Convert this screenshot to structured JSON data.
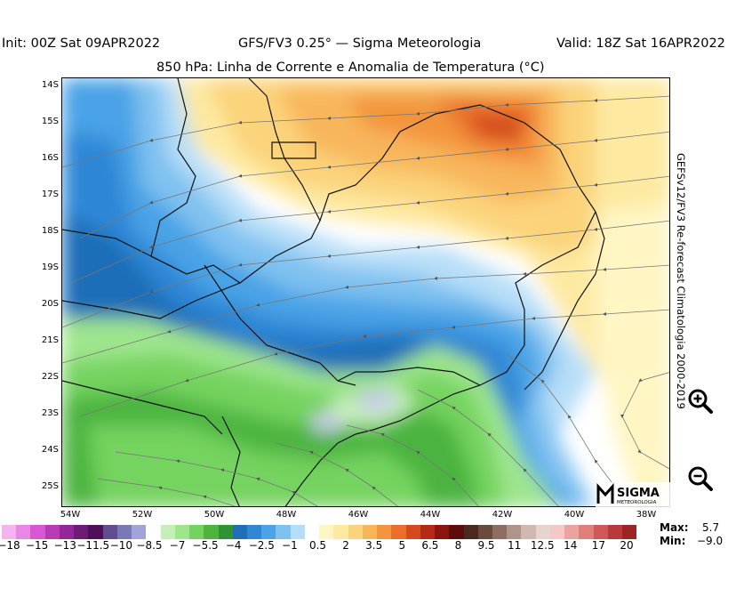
{
  "header": {
    "init": "Init: 00Z Sat 09APR2022",
    "model": "GFS/FV3 0.25° — Sigma Meteorologia",
    "valid": "Valid: 18Z Sat 16APR2022",
    "subtitle": "850 hPa: Linha de Corrente e Anomalia de Temperatura (°C)"
  },
  "side_label": "GEFSv12/FV3 Re-forecast Climatologia 2000-2019",
  "lat_labels": [
    "14S",
    "15S",
    "16S",
    "17S",
    "18S",
    "19S",
    "20S",
    "21S",
    "22S",
    "23S",
    "24S",
    "25S"
  ],
  "lon_labels": [
    "54W",
    "52W",
    "50W",
    "48W",
    "46W",
    "44W",
    "42W",
    "40W",
    "38W"
  ],
  "logo": {
    "name": "SIGMA",
    "sub": "METEOROLOGIA"
  },
  "colorbar": {
    "colors": [
      "#f5b3ef",
      "#ea86e3",
      "#d957d3",
      "#b83ab5",
      "#93279a",
      "#6d1b75",
      "#4e1157",
      "#5e4d8f",
      "#7b78b6",
      "#a3a4d6",
      "#ffffff",
      "#c4f0b8",
      "#9ee58d",
      "#74d35f",
      "#4cb43f",
      "#2f9233",
      "#1f6eb8",
      "#2f87d6",
      "#4aa3e6",
      "#7fc1f0",
      "#b7def8",
      "#ffffff",
      "#fff6c4",
      "#fde9a0",
      "#fbd37a",
      "#f8b65b",
      "#f3943e",
      "#e96f2b",
      "#d44a1f",
      "#b42a16",
      "#8c140f",
      "#5e0c09",
      "#4a2a1e",
      "#6b4a3c",
      "#8d6e62",
      "#b09389",
      "#d1b9b1",
      "#e8d4cf",
      "#f3c9c6",
      "#eba3a0",
      "#e07e7b",
      "#d05858",
      "#b93a3a",
      "#9c2424"
    ],
    "labels": [
      "−18",
      "−15",
      "−13",
      "−11.5",
      "−10",
      "−8.5",
      "−7",
      "−5.5",
      "−4",
      "−2.5",
      "−1",
      "0.5",
      "2",
      "3.5",
      "5",
      "6.5",
      "8",
      "9.5",
      "11",
      "12.5",
      "14",
      "17",
      "20"
    ]
  },
  "stats": {
    "max_label": "Max:",
    "max_value": "5.7",
    "min_label": "Min:",
    "min_value": "−9.0"
  },
  "zoom": {
    "in": "zoom-in-icon",
    "out": "zoom-out-icon"
  }
}
